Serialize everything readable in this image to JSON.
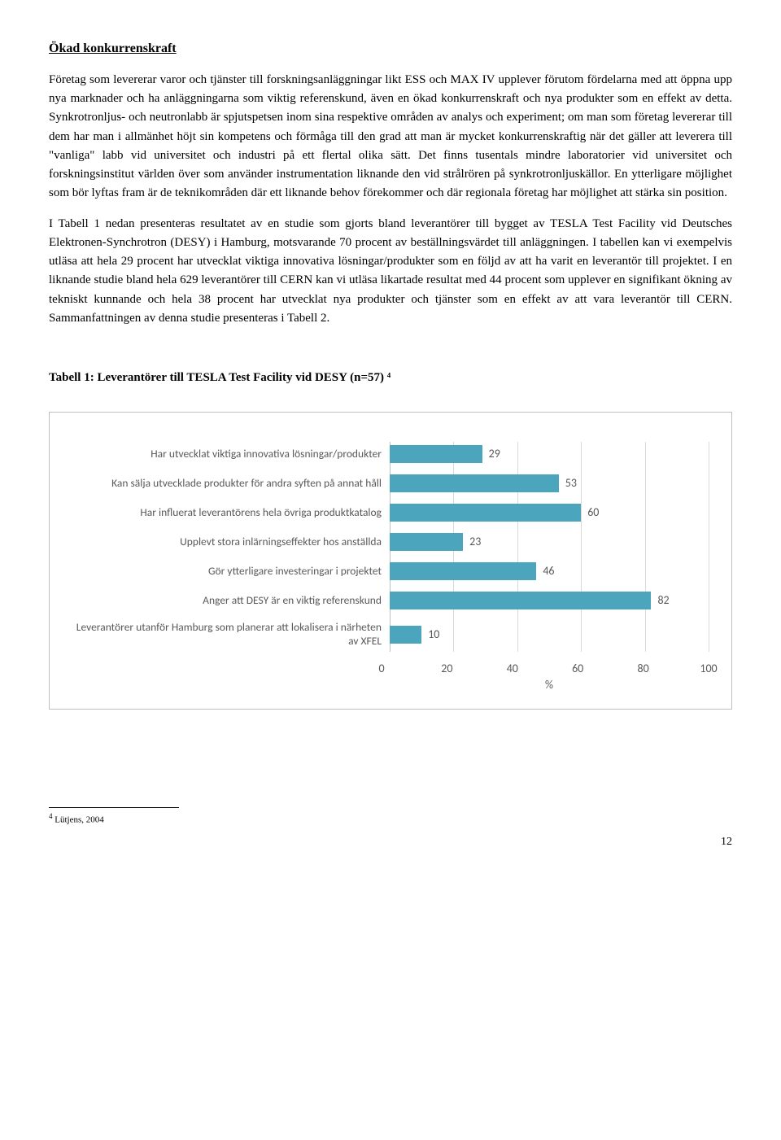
{
  "heading": "Ökad konkurrenskraft",
  "para1": "Företag som levererar varor och tjänster till forskningsanläggningar likt ESS och MAX IV upplever förutom fördelarna med att öppna upp nya marknader och ha anläggningarna som viktig referenskund, även en ökad konkurrenskraft och nya produkter som en effekt av detta. Synkrotronljus- och neutronlabb är spjutspetsen inom sina respektive områden av analys och experiment; om man som företag levererar till dem har man i allmänhet höjt sin kompetens och förmåga till den grad att man är mycket konkurrenskraftig när det gäller att leverera till \"vanliga\" labb vid universitet och industri på ett flertal olika sätt. Det finns tusentals mindre laboratorier vid universitet och forskningsinstitut världen över som använder instrumentation liknande den vid strålrören på synkrotronljuskällor. En ytterligare möjlighet som bör lyftas fram är de teknikområden där ett liknande behov förekommer och där regionala företag har möjlighet att stärka sin position.",
  "para2": "I Tabell 1 nedan presenteras resultatet av en studie som gjorts bland leverantörer till bygget av TESLA Test Facility vid Deutsches Elektronen-Synchrotron (DESY) i Hamburg, motsvarande 70 procent av beställningsvärdet till anläggningen. I tabellen kan vi exempelvis utläsa att hela 29 procent har utvecklat viktiga innovativa lösningar/produkter som en följd av att ha varit en leverantör till projektet. I en liknande studie bland hela 629 leverantörer till CERN kan vi utläsa likartade resultat med 44 procent som upplever en signifikant ökning av tekniskt kunnande och hela 38 procent har utvecklat nya produkter och tjänster som en effekt av att vara leverantör till CERN. Sammanfattningen av denna studie presenteras i Tabell 2.",
  "chart": {
    "title": "Tabell 1: Leverantörer till TESLA Test Facility vid DESY (n=57) ⁴",
    "type": "bar",
    "bar_color": "#4ba5bd",
    "grid_color": "#d9d9d9",
    "axis_color": "#bfbfbf",
    "text_color": "#595959",
    "xmax": 100,
    "ticks": [
      0,
      20,
      40,
      60,
      80,
      100
    ],
    "xlabel": "%",
    "items": [
      {
        "label": "Har utvecklat viktiga innovativa lösningar/produkter",
        "value": 29
      },
      {
        "label": "Kan sälja utvecklade produkter för andra syften på annat håll",
        "value": 53
      },
      {
        "label": "Har influerat leverantörens hela övriga produktkatalog",
        "value": 60
      },
      {
        "label": "Upplevt stora inlärningseffekter hos anställda",
        "value": 23
      },
      {
        "label": "Gör ytterligare investeringar i projektet",
        "value": 46
      },
      {
        "label": "Anger att DESY är en viktig referenskund",
        "value": 82
      },
      {
        "label": "Leverantörer utanför Hamburg som planerar att lokalisera i närheten av XFEL",
        "value": 10
      }
    ]
  },
  "footnote": {
    "num": "4",
    "text": "Lütjens, 2004"
  },
  "pagenum": "12"
}
